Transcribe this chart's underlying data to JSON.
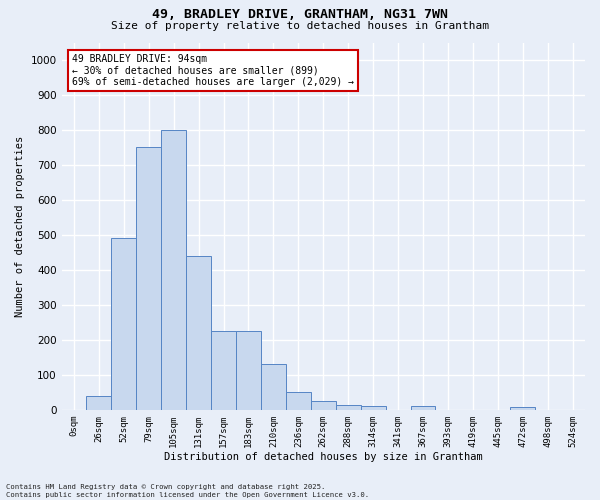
{
  "title_line1": "49, BRADLEY DRIVE, GRANTHAM, NG31 7WN",
  "title_line2": "Size of property relative to detached houses in Grantham",
  "xlabel": "Distribution of detached houses by size in Grantham",
  "ylabel": "Number of detached properties",
  "bar_color": "#c8d8ee",
  "bar_edge_color": "#5585c5",
  "background_color": "#e8eef8",
  "grid_color": "#ffffff",
  "categories": [
    "0sqm",
    "26sqm",
    "52sqm",
    "79sqm",
    "105sqm",
    "131sqm",
    "157sqm",
    "183sqm",
    "210sqm",
    "236sqm",
    "262sqm",
    "288sqm",
    "314sqm",
    "341sqm",
    "367sqm",
    "393sqm",
    "419sqm",
    "445sqm",
    "472sqm",
    "498sqm",
    "524sqm"
  ],
  "values": [
    0,
    40,
    490,
    750,
    800,
    440,
    225,
    225,
    130,
    50,
    25,
    13,
    10,
    0,
    10,
    0,
    0,
    0,
    7,
    0,
    0
  ],
  "ylim": [
    0,
    1050
  ],
  "yticks": [
    0,
    100,
    200,
    300,
    400,
    500,
    600,
    700,
    800,
    900,
    1000
  ],
  "annotation_line1": "49 BRADLEY DRIVE: 94sqm",
  "annotation_line2": "← 30% of detached houses are smaller (899)",
  "annotation_line3": "69% of semi-detached houses are larger (2,029) →",
  "annotation_box_facecolor": "#ffffff",
  "annotation_box_edgecolor": "#cc0000",
  "footer_line1": "Contains HM Land Registry data © Crown copyright and database right 2025.",
  "footer_line2": "Contains public sector information licensed under the Open Government Licence v3.0."
}
